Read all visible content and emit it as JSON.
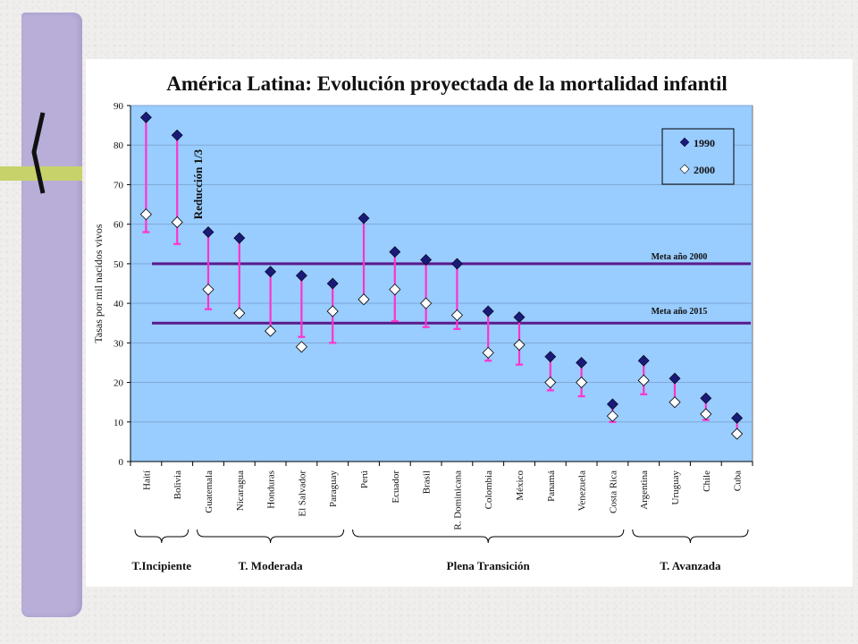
{
  "slide": {
    "colors": {
      "background": "#efeeec",
      "side_band": "#b8aed8",
      "side_stripe": "#c8d26a",
      "plot_area": "#99ccff",
      "marker_1990": "#1a1a7a",
      "marker_2000": "#ffffff",
      "range_line": "#ff33cc",
      "target_line": "#5a1a8a"
    }
  },
  "chart_data": {
    "type": "scatter",
    "title": "América Latina: Evolución proyectada de la mortalidad infantil",
    "ylabel": "Tasas por mil nacidos vivos",
    "ylim": [
      0,
      90
    ],
    "yticks": [
      "0",
      "10",
      "20",
      "30",
      "40",
      "50",
      "60",
      "70",
      "80",
      "90"
    ],
    "categories": [
      "Haití",
      "Bolivia",
      "Guatemala",
      "Nicaragua",
      "Honduras",
      "El Salvador",
      "Paraguay",
      "Perú",
      "Ecuador",
      "Brasil",
      "R. Dominicana",
      "Colombia",
      "México",
      "Panamá",
      "Venezuela",
      "Costa Rica",
      "Argentina",
      "Uruguay",
      "Chile",
      "Cuba"
    ],
    "series": [
      {
        "name": "1990",
        "values": [
          87,
          82.5,
          58,
          56.5,
          48,
          47,
          45,
          61.5,
          53,
          51,
          50,
          38,
          36.5,
          26.5,
          25,
          14.5,
          25.5,
          21,
          16,
          11
        ]
      },
      {
        "name": "2000",
        "values": [
          62.5,
          60.5,
          43.5,
          37.5,
          33,
          29,
          38,
          41,
          43.5,
          40,
          37,
          27.5,
          29.5,
          20,
          20,
          11.5,
          20.5,
          15,
          12,
          7
        ]
      }
    ],
    "range_low": [
      58,
      55,
      38.5,
      null,
      null,
      31.5,
      30,
      null,
      35.5,
      34,
      33.5,
      25.5,
      24.5,
      18,
      16.5,
      10,
      17,
      null,
      10.5,
      null
    ],
    "targets": [
      {
        "label": "Meta año 2000",
        "value": 50
      },
      {
        "label": "Meta año 2015",
        "value": 35
      }
    ],
    "annotation": "Reducción 1/3",
    "groups": [
      {
        "label": "T.Incipiente",
        "from": 0,
        "to": 1
      },
      {
        "label": "T. Moderada",
        "from": 2,
        "to": 6
      },
      {
        "label": "Plena Transición",
        "from": 7,
        "to": 15
      },
      {
        "label": "T. Avanzada",
        "from": 16,
        "to": 19
      }
    ],
    "legend_position": "top-right",
    "grid": true
  }
}
